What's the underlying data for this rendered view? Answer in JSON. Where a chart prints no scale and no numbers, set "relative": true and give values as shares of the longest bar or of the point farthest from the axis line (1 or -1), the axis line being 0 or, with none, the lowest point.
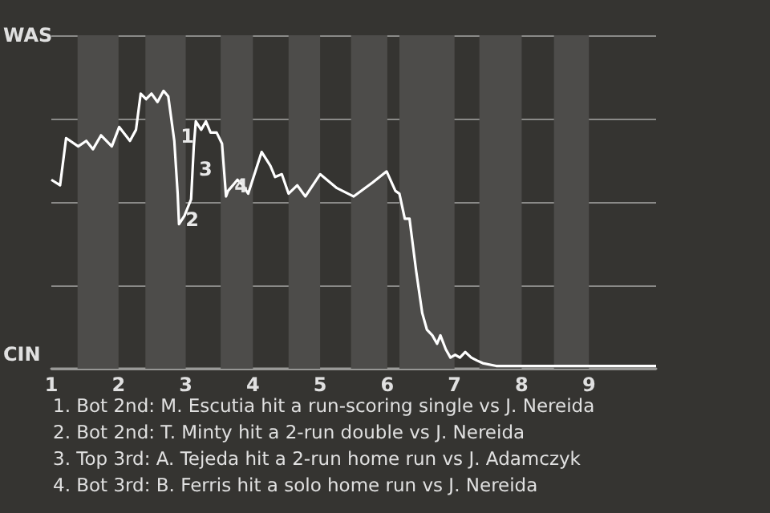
{
  "chart_data": {
    "type": "line",
    "relative": true,
    "x": [
      1,
      1.13,
      1.22,
      1.4,
      1.52,
      1.62,
      1.74,
      1.9,
      2.01,
      2.17,
      2.26,
      2.33,
      2.41,
      2.49,
      2.58,
      2.67,
      2.74,
      2.83,
      2.88,
      2.9,
      2.98,
      3.08,
      3.12,
      3.15,
      3.23,
      3.3,
      3.37,
      3.46,
      3.54,
      3.6,
      3.63,
      3.7,
      3.77,
      3.85,
      3.93,
      4.13,
      4.26,
      4.33,
      4.43,
      4.53,
      4.66,
      4.78,
      5,
      5.25,
      5.5,
      5.78,
      5.99,
      6.12,
      6.18,
      6.26,
      6.33,
      6.43,
      6.52,
      6.59,
      6.67,
      6.74,
      6.79,
      6.87,
      6.94,
      7.01,
      7.08,
      7.16,
      7.25,
      7.33,
      7.42,
      7.62,
      8.04,
      10
    ],
    "series": [
      {
        "color": "#ffffff",
        "values": [
          0.68,
          0.66,
          0.83,
          0.8,
          0.82,
          0.79,
          0.84,
          0.8,
          0.87,
          0.82,
          0.86,
          0.99,
          0.97,
          0.99,
          0.96,
          1,
          0.98,
          0.82,
          0.63,
          0.52,
          0.55,
          0.61,
          0.8,
          0.89,
          0.86,
          0.89,
          0.85,
          0.85,
          0.81,
          0.62,
          0.64,
          0.66,
          0.68,
          0.66,
          0.63,
          0.78,
          0.73,
          0.69,
          0.7,
          0.63,
          0.66,
          0.62,
          0.7,
          0.65,
          0.62,
          0.67,
          0.71,
          0.64,
          0.63,
          0.54,
          0.54,
          0.35,
          0.2,
          0.14,
          0.12,
          0.09,
          0.12,
          0.07,
          0.04,
          0.05,
          0.04,
          0.06,
          0.04,
          0.03,
          0.02,
          0.01,
          0.01,
          0.01
        ]
      }
    ],
    "xlim": [
      1,
      10
    ],
    "xticks": [
      1,
      2,
      3,
      4,
      5,
      6,
      7,
      8,
      9
    ],
    "grid": "y",
    "marker": "none",
    "line_style": "solid",
    "bands": [
      {
        "axis": "x",
        "from": 1.39,
        "to": 2,
        "color": "#4d4c4a"
      },
      {
        "axis": "x",
        "from": 2.4,
        "to": 3,
        "color": "#4d4c4a"
      },
      {
        "axis": "x",
        "from": 3.52,
        "to": 4,
        "color": "#4d4c4a"
      },
      {
        "axis": "x",
        "from": 4.53,
        "to": 5,
        "color": "#4d4c4a"
      },
      {
        "axis": "x",
        "from": 5.46,
        "to": 6,
        "color": "#4d4c4a"
      },
      {
        "axis": "x",
        "from": 6.18,
        "to": 7,
        "color": "#4d4c4a"
      },
      {
        "axis": "x",
        "from": 7.37,
        "to": 8,
        "color": "#4d4c4a"
      },
      {
        "axis": "x",
        "from": 8.48,
        "to": 9,
        "color": "#4d4c4a"
      }
    ],
    "annotations": [
      "WAS",
      "CIN",
      {
        "text": "1",
        "x": 2.83,
        "y": 0.82
      },
      {
        "text": "2",
        "x": 2.9,
        "y": 0.52
      },
      {
        "text": "3",
        "x": 3.1,
        "y": 0.7
      },
      {
        "text": "4",
        "x": 3.63,
        "y": 0.64
      },
      "1. Bot 2nd: M. Escutia hit a run-scoring single vs J. Nereida",
      "2. Bot 2nd: T. Minty hit a 2-run double vs J. Nereida",
      "3. Top 3rd: A. Tejeda hit a 2-run home run vs J. Adamczyk",
      "4. Bot 3rd: B. Ferris hit a solo home run vs J. Nereida"
    ]
  }
}
